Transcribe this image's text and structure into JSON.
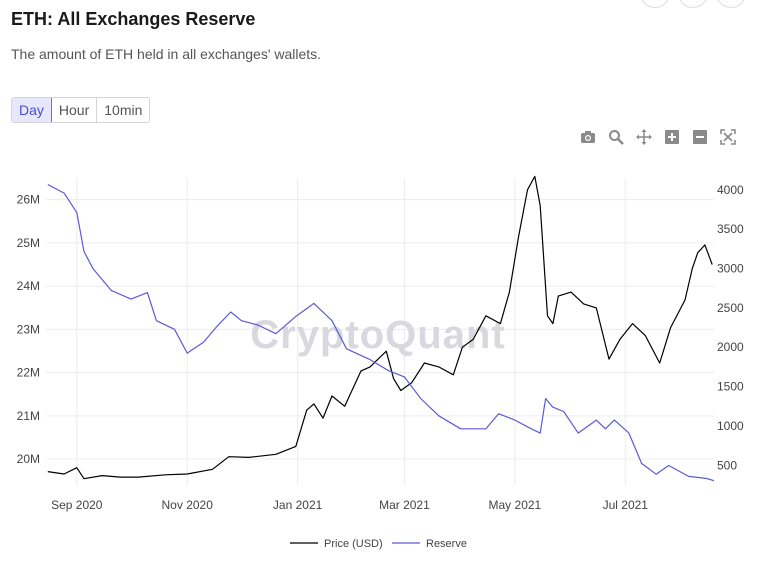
{
  "header": {
    "title": "ETH: All Exchanges Reserve",
    "subtitle": "The amount of ETH held in all exchanges' wallets."
  },
  "tabs": [
    {
      "label": "Day",
      "active": true
    },
    {
      "label": "Hour",
      "active": false
    },
    {
      "label": "10min",
      "active": false
    }
  ],
  "toolbar": [
    {
      "icon": "camera-icon"
    },
    {
      "icon": "zoom-icon"
    },
    {
      "icon": "pan-icon"
    },
    {
      "icon": "zoom-in-icon"
    },
    {
      "icon": "zoom-out-icon"
    },
    {
      "icon": "autoscale-icon"
    }
  ],
  "watermark": "CryptoQuant",
  "chart_data": {
    "type": "line",
    "x_ticks": [
      "Sep 2020",
      "Nov 2020",
      "Jan 2021",
      "Mar 2021",
      "May 2021",
      "Jul 2021"
    ],
    "x_range": [
      "2020-08-15",
      "2021-08-19"
    ],
    "y_left_ticks": [
      "20M",
      "21M",
      "22M",
      "23M",
      "24M",
      "25M",
      "26M"
    ],
    "y_left_range": [
      19.4,
      26.5
    ],
    "y_right_ticks": [
      "500",
      "1000",
      "1500",
      "2000",
      "2500",
      "3000",
      "3500",
      "4000"
    ],
    "y_right_range": [
      250,
      4150
    ],
    "grid": true,
    "legend_position": "bottom",
    "series": [
      {
        "name": "Price (USD)",
        "axis": "right",
        "color": "#000000",
        "points": [
          [
            "2020-08-16",
            420
          ],
          [
            "2020-08-25",
            390
          ],
          [
            "2020-09-01",
            470
          ],
          [
            "2020-09-05",
            330
          ],
          [
            "2020-09-15",
            370
          ],
          [
            "2020-09-25",
            350
          ],
          [
            "2020-10-05",
            350
          ],
          [
            "2020-10-20",
            380
          ],
          [
            "2020-11-01",
            390
          ],
          [
            "2020-11-15",
            450
          ],
          [
            "2020-11-24",
            610
          ],
          [
            "2020-12-05",
            600
          ],
          [
            "2020-12-20",
            640
          ],
          [
            "2020-12-31",
            740
          ],
          [
            "2021-01-06",
            1200
          ],
          [
            "2021-01-10",
            1280
          ],
          [
            "2021-01-15",
            1100
          ],
          [
            "2021-01-20",
            1380
          ],
          [
            "2021-01-27",
            1250
          ],
          [
            "2021-02-05",
            1700
          ],
          [
            "2021-02-10",
            1750
          ],
          [
            "2021-02-19",
            1950
          ],
          [
            "2021-02-23",
            1600
          ],
          [
            "2021-02-27",
            1450
          ],
          [
            "2021-03-05",
            1550
          ],
          [
            "2021-03-12",
            1800
          ],
          [
            "2021-03-20",
            1750
          ],
          [
            "2021-03-28",
            1650
          ],
          [
            "2021-04-02",
            2000
          ],
          [
            "2021-04-08",
            2100
          ],
          [
            "2021-04-15",
            2400
          ],
          [
            "2021-04-23",
            2300
          ],
          [
            "2021-04-28",
            2700
          ],
          [
            "2021-05-03",
            3400
          ],
          [
            "2021-05-08",
            4000
          ],
          [
            "2021-05-12",
            4170
          ],
          [
            "2021-05-15",
            3800
          ],
          [
            "2021-05-19",
            2400
          ],
          [
            "2021-05-22",
            2300
          ],
          [
            "2021-05-25",
            2650
          ],
          [
            "2021-06-01",
            2700
          ],
          [
            "2021-06-08",
            2550
          ],
          [
            "2021-06-15",
            2500
          ],
          [
            "2021-06-22",
            1850
          ],
          [
            "2021-06-28",
            2100
          ],
          [
            "2021-07-05",
            2300
          ],
          [
            "2021-07-12",
            2150
          ],
          [
            "2021-07-20",
            1800
          ],
          [
            "2021-07-26",
            2250
          ],
          [
            "2021-08-03",
            2600
          ],
          [
            "2021-08-07",
            3000
          ],
          [
            "2021-08-10",
            3200
          ],
          [
            "2021-08-14",
            3300
          ],
          [
            "2021-08-18",
            3050
          ]
        ]
      },
      {
        "name": "Reserve",
        "axis": "left",
        "color": "#5b5bd6",
        "points": [
          [
            "2020-08-16",
            26.35
          ],
          [
            "2020-08-25",
            26.15
          ],
          [
            "2020-09-01",
            25.7
          ],
          [
            "2020-09-05",
            24.8
          ],
          [
            "2020-09-10",
            24.4
          ],
          [
            "2020-09-20",
            23.9
          ],
          [
            "2020-10-01",
            23.7
          ],
          [
            "2020-10-10",
            23.85
          ],
          [
            "2020-10-15",
            23.2
          ],
          [
            "2020-10-25",
            23.0
          ],
          [
            "2020-11-01",
            22.45
          ],
          [
            "2020-11-10",
            22.7
          ],
          [
            "2020-11-17",
            23.05
          ],
          [
            "2020-11-25",
            23.4
          ],
          [
            "2020-12-01",
            23.2
          ],
          [
            "2020-12-10",
            23.1
          ],
          [
            "2020-12-20",
            22.9
          ],
          [
            "2020-12-31",
            23.3
          ],
          [
            "2021-01-10",
            23.6
          ],
          [
            "2021-01-20",
            23.2
          ],
          [
            "2021-01-28",
            22.55
          ],
          [
            "2021-02-10",
            22.3
          ],
          [
            "2021-02-20",
            22.05
          ],
          [
            "2021-03-01",
            21.9
          ],
          [
            "2021-03-10",
            21.4
          ],
          [
            "2021-03-20",
            21.0
          ],
          [
            "2021-04-01",
            20.7
          ],
          [
            "2021-04-15",
            20.7
          ],
          [
            "2021-04-22",
            21.05
          ],
          [
            "2021-05-01",
            20.9
          ],
          [
            "2021-05-10",
            20.7
          ],
          [
            "2021-05-15",
            20.6
          ],
          [
            "2021-05-18",
            21.4
          ],
          [
            "2021-05-22",
            21.2
          ],
          [
            "2021-05-28",
            21.1
          ],
          [
            "2021-06-05",
            20.6
          ],
          [
            "2021-06-15",
            20.9
          ],
          [
            "2021-06-20",
            20.7
          ],
          [
            "2021-06-25",
            20.9
          ],
          [
            "2021-07-03",
            20.6
          ],
          [
            "2021-07-10",
            19.9
          ],
          [
            "2021-07-18",
            19.65
          ],
          [
            "2021-07-25",
            19.85
          ],
          [
            "2021-08-05",
            19.6
          ],
          [
            "2021-08-15",
            19.55
          ],
          [
            "2021-08-19",
            19.5
          ]
        ]
      }
    ]
  }
}
